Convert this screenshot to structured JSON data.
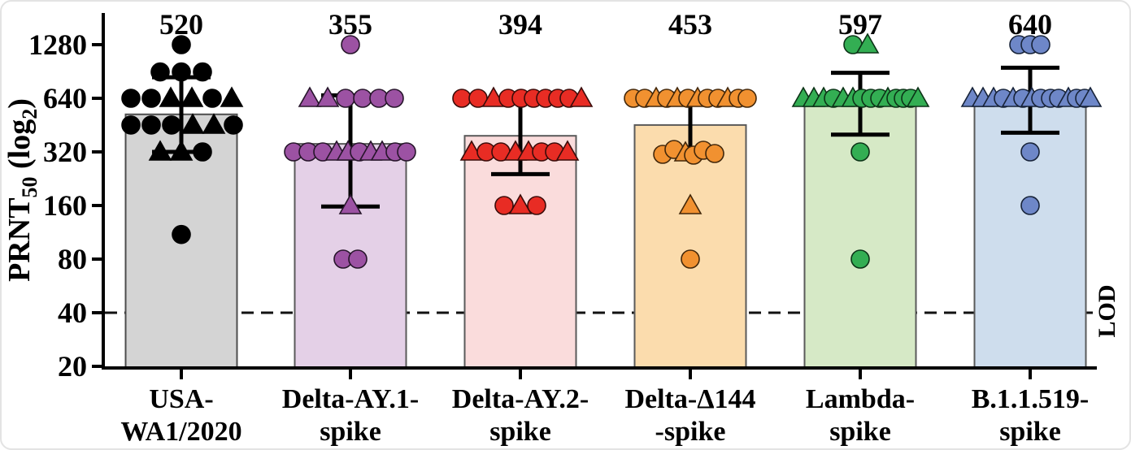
{
  "figure": {
    "description": "PRNT50 neutralization titers by SARS-CoV-2 spike variant"
  },
  "chart_data": {
    "type": "bar",
    "subtype": "bar-with-scatter-log2",
    "title": "",
    "xlabel": "",
    "ylabel": "PRNT50 (log2)",
    "ylabel_rich": [
      {
        "t": "PRNT",
        "sub": false
      },
      {
        "t": "50",
        "sub": true
      },
      {
        "t": " (log",
        "sub": false
      },
      {
        "t": "2",
        "sub": true
      },
      {
        "t": ")",
        "sub": false
      }
    ],
    "scale": "log2",
    "ylim": [
      20,
      1500
    ],
    "yticks": [
      {
        "value": 20,
        "label": "20"
      },
      {
        "value": 40,
        "label": "40"
      },
      {
        "value": 80,
        "label": "80"
      },
      {
        "value": 160,
        "label": "160"
      },
      {
        "value": 320,
        "label": "320"
      },
      {
        "value": 640,
        "label": "640"
      },
      {
        "value": 1280,
        "label": "1280"
      }
    ],
    "lod": {
      "value": 40,
      "label": "LOD"
    },
    "grid": false,
    "legend": "none",
    "groups": [
      {
        "label_lines": [
          "USA-",
          "WA1/2020"
        ],
        "label_color": "#000000",
        "gmt_label": "520",
        "bar_value": 520,
        "error_low": 320,
        "error_high": 840,
        "bar_fill": "#d4d4d4",
        "bar_stroke": "#4d4d4d",
        "marker_fill": "#000000",
        "marker_stroke": "#000000",
        "points": [
          {
            "v": 1280,
            "s": "circle",
            "o": 0
          },
          {
            "v": 900,
            "s": "circle",
            "o": -26
          },
          {
            "v": 900,
            "s": "circle",
            "o": 0
          },
          {
            "v": 900,
            "s": "circle",
            "o": 26
          },
          {
            "v": 640,
            "s": "circle",
            "o": -62
          },
          {
            "v": 640,
            "s": "circle",
            "o": -37
          },
          {
            "v": 640,
            "s": "triangle",
            "o": -13
          },
          {
            "v": 640,
            "s": "triangle",
            "o": 13
          },
          {
            "v": 640,
            "s": "circle",
            "o": 38
          },
          {
            "v": 640,
            "s": "triangle",
            "o": 62
          },
          {
            "v": 453,
            "s": "circle",
            "o": -62
          },
          {
            "v": 453,
            "s": "circle",
            "o": -37
          },
          {
            "v": 453,
            "s": "circle",
            "o": -12
          },
          {
            "v": 453,
            "s": "triangle",
            "o": 14
          },
          {
            "v": 453,
            "s": "triangle",
            "o": 40
          },
          {
            "v": 453,
            "s": "circle",
            "o": 64
          },
          {
            "v": 320,
            "s": "triangle",
            "o": -26
          },
          {
            "v": 320,
            "s": "triangle",
            "o": 0
          },
          {
            "v": 320,
            "s": "circle",
            "o": 26
          },
          {
            "v": 110,
            "s": "circle",
            "o": 0
          }
        ]
      },
      {
        "label_lines": [
          "Delta-AY.1-",
          "spike"
        ],
        "label_color": "#7b4fa5",
        "gmt_label": "355",
        "bar_value": 355,
        "error_low": 158,
        "error_high": 665,
        "bar_fill": "#e4d0e7",
        "bar_stroke": "#5a5a5a",
        "marker_fill": "#9c52a3",
        "marker_stroke": "#26152a",
        "points": [
          {
            "v": 1280,
            "s": "circle",
            "o": 0
          },
          {
            "v": 640,
            "s": "triangle",
            "o": -50
          },
          {
            "v": 640,
            "s": "triangle",
            "o": -28
          },
          {
            "v": 640,
            "s": "circle",
            "o": -6
          },
          {
            "v": 640,
            "s": "circle",
            "o": 15
          },
          {
            "v": 640,
            "s": "circle",
            "o": 35
          },
          {
            "v": 640,
            "s": "circle",
            "o": 54
          },
          {
            "v": 320,
            "s": "circle",
            "o": -70
          },
          {
            "v": 320,
            "s": "circle",
            "o": -52
          },
          {
            "v": 320,
            "s": "circle",
            "o": -34
          },
          {
            "v": 320,
            "s": "triangle",
            "o": -17
          },
          {
            "v": 320,
            "s": "triangle",
            "o": -3
          },
          {
            "v": 320,
            "s": "circle",
            "o": 11
          },
          {
            "v": 320,
            "s": "triangle",
            "o": 25
          },
          {
            "v": 320,
            "s": "triangle",
            "o": 39
          },
          {
            "v": 320,
            "s": "circle",
            "o": 55
          },
          {
            "v": 320,
            "s": "circle",
            "o": 69
          },
          {
            "v": 160,
            "s": "triangle",
            "o": 0
          },
          {
            "v": 80,
            "s": "circle",
            "o": -9
          },
          {
            "v": 80,
            "s": "circle",
            "o": 9
          }
        ]
      },
      {
        "label_lines": [
          "Delta-AY.2-",
          "spike"
        ],
        "label_color": "#e8251f",
        "gmt_label": "394",
        "bar_value": 394,
        "error_low": 240,
        "error_high": 640,
        "bar_fill": "#fadcdc",
        "bar_stroke": "#5a5a5a",
        "marker_fill": "#e82c24",
        "marker_stroke": "#3a0c0a",
        "points": [
          {
            "v": 640,
            "s": "circle",
            "o": -72
          },
          {
            "v": 640,
            "s": "circle",
            "o": -52
          },
          {
            "v": 640,
            "s": "triangle",
            "o": -33
          },
          {
            "v": 640,
            "s": "circle",
            "o": -15
          },
          {
            "v": 640,
            "s": "circle",
            "o": 1
          },
          {
            "v": 640,
            "s": "circle",
            "o": 16
          },
          {
            "v": 640,
            "s": "circle",
            "o": 31
          },
          {
            "v": 640,
            "s": "circle",
            "o": 46
          },
          {
            "v": 640,
            "s": "circle",
            "o": 60
          },
          {
            "v": 640,
            "s": "triangle",
            "o": 75
          },
          {
            "v": 320,
            "s": "triangle",
            "o": -60
          },
          {
            "v": 320,
            "s": "circle",
            "o": -42
          },
          {
            "v": 320,
            "s": "circle",
            "o": -24
          },
          {
            "v": 320,
            "s": "triangle",
            "o": -6
          },
          {
            "v": 320,
            "s": "triangle",
            "o": 10
          },
          {
            "v": 320,
            "s": "circle",
            "o": 26
          },
          {
            "v": 320,
            "s": "circle",
            "o": 42
          },
          {
            "v": 320,
            "s": "triangle",
            "o": 58
          },
          {
            "v": 160,
            "s": "circle",
            "o": -20
          },
          {
            "v": 160,
            "s": "triangle",
            "o": 0
          },
          {
            "v": 160,
            "s": "circle",
            "o": 20
          }
        ]
      },
      {
        "label_lines": [
          "Delta-Δ144",
          "-spike"
        ],
        "label_color": "#f0912f",
        "gmt_label": "453",
        "bar_value": 453,
        "error_low": 314,
        "error_high": 680,
        "bar_fill": "#fbdcad",
        "bar_stroke": "#5a5a5a",
        "marker_fill": "#f19130",
        "marker_stroke": "#42270a",
        "points": [
          {
            "v": 640,
            "s": "circle",
            "o": -70
          },
          {
            "v": 640,
            "s": "circle",
            "o": -56
          },
          {
            "v": 640,
            "s": "triangle",
            "o": -42
          },
          {
            "v": 640,
            "s": "circle",
            "o": -29
          },
          {
            "v": 640,
            "s": "triangle",
            "o": -16
          },
          {
            "v": 640,
            "s": "circle",
            "o": -3
          },
          {
            "v": 640,
            "s": "triangle",
            "o": 9
          },
          {
            "v": 640,
            "s": "circle",
            "o": 21
          },
          {
            "v": 640,
            "s": "circle",
            "o": 34
          },
          {
            "v": 640,
            "s": "triangle",
            "o": 46
          },
          {
            "v": 640,
            "s": "circle",
            "o": 59
          },
          {
            "v": 640,
            "s": "circle",
            "o": 70
          },
          {
            "v": 320,
            "s": "circle",
            "o": -34,
            "j": 3
          },
          {
            "v": 320,
            "s": "circle",
            "o": -20,
            "j": -3
          },
          {
            "v": 320,
            "s": "triangle",
            "o": -6,
            "j": 1
          },
          {
            "v": 320,
            "s": "circle",
            "o": 4,
            "j": 4
          },
          {
            "v": 320,
            "s": "circle",
            "o": 16,
            "j": -2
          },
          {
            "v": 320,
            "s": "circle",
            "o": 30,
            "j": 2
          },
          {
            "v": 160,
            "s": "triangle",
            "o": 0
          },
          {
            "v": 80,
            "s": "circle",
            "o": 0
          }
        ]
      },
      {
        "label_lines": [
          "Lambda-",
          "spike"
        ],
        "label_color": "#00a44f",
        "gmt_label": "597",
        "bar_value": 597,
        "error_low": 400,
        "error_high": 890,
        "bar_fill": "#d6e9c6",
        "bar_stroke": "#5a5a5a",
        "marker_fill": "#33ae53",
        "marker_stroke": "#0c3317",
        "points": [
          {
            "v": 1280,
            "s": "circle",
            "o": -9
          },
          {
            "v": 1280,
            "s": "triangle",
            "o": 9
          },
          {
            "v": 640,
            "s": "triangle",
            "o": -70
          },
          {
            "v": 640,
            "s": "triangle",
            "o": -57
          },
          {
            "v": 640,
            "s": "triangle",
            "o": -45
          },
          {
            "v": 640,
            "s": "circle",
            "o": -33
          },
          {
            "v": 640,
            "s": "triangle",
            "o": -21
          },
          {
            "v": 640,
            "s": "triangle",
            "o": -9
          },
          {
            "v": 640,
            "s": "circle",
            "o": 2
          },
          {
            "v": 640,
            "s": "circle",
            "o": 13
          },
          {
            "v": 640,
            "s": "circle",
            "o": 24
          },
          {
            "v": 640,
            "s": "triangle",
            "o": 34
          },
          {
            "v": 640,
            "s": "circle",
            "o": 44
          },
          {
            "v": 640,
            "s": "circle",
            "o": 53
          },
          {
            "v": 640,
            "s": "circle",
            "o": 62
          },
          {
            "v": 640,
            "s": "triangle",
            "o": 71
          },
          {
            "v": 320,
            "s": "circle",
            "o": 0
          },
          {
            "v": 80,
            "s": "circle",
            "o": 0
          }
        ]
      },
      {
        "label_lines": [
          "B.1.1.519-",
          "spike"
        ],
        "label_color": "#5d77b8",
        "gmt_label": "640",
        "bar_value": 640,
        "error_low": 410,
        "error_high": 950,
        "bar_fill": "#cedded",
        "bar_stroke": "#5a5a5a",
        "marker_fill": "#6e87c8",
        "marker_stroke": "#172339",
        "points": [
          {
            "v": 1280,
            "s": "circle",
            "o": -14
          },
          {
            "v": 1280,
            "s": "circle",
            "o": 0
          },
          {
            "v": 1280,
            "s": "circle",
            "o": 13
          },
          {
            "v": 640,
            "s": "triangle",
            "o": -71
          },
          {
            "v": 640,
            "s": "triangle",
            "o": -58
          },
          {
            "v": 640,
            "s": "triangle",
            "o": -45
          },
          {
            "v": 640,
            "s": "circle",
            "o": -33
          },
          {
            "v": 640,
            "s": "triangle",
            "o": -21
          },
          {
            "v": 640,
            "s": "circle",
            "o": -9
          },
          {
            "v": 640,
            "s": "triangle",
            "o": 2
          },
          {
            "v": 640,
            "s": "circle",
            "o": 13
          },
          {
            "v": 640,
            "s": "circle",
            "o": 25
          },
          {
            "v": 640,
            "s": "circle",
            "o": 35
          },
          {
            "v": 640,
            "s": "triangle",
            "o": 47
          },
          {
            "v": 640,
            "s": "circle",
            "o": 57
          },
          {
            "v": 640,
            "s": "circle",
            "o": 67
          },
          {
            "v": 640,
            "s": "triangle",
            "o": 74
          },
          {
            "v": 320,
            "s": "circle",
            "o": 0
          },
          {
            "v": 160,
            "s": "circle",
            "o": 0
          }
        ]
      }
    ]
  }
}
